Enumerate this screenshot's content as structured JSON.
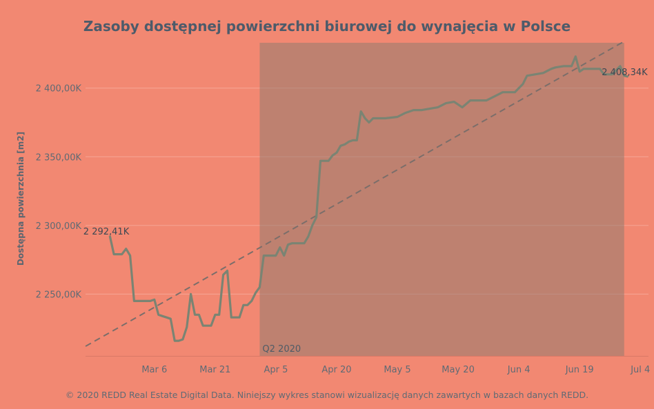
{
  "chart_data": {
    "type": "line",
    "title": "Zasoby dostępnej powierzchni biurowej do wynajęcia w Polsce",
    "ylabel": "Dostępna powierzchnia [m2]",
    "footer": "© 2020 REDD Real Estate Digital Data. Niniejszy wykres stanowi wizualizację danych zawartych w bazach danych REDD.",
    "x_range": [
      "2020-02-18",
      "2020-07-06"
    ],
    "ylim": [
      2205,
      2433
    ],
    "x_ticks": [
      {
        "date": "2020-03-06",
        "label": "Mar 6"
      },
      {
        "date": "2020-03-21",
        "label": "Mar 21"
      },
      {
        "date": "2020-04-05",
        "label": "Apr 5"
      },
      {
        "date": "2020-04-20",
        "label": "Apr 20"
      },
      {
        "date": "2020-05-05",
        "label": "May 5"
      },
      {
        "date": "2020-05-20",
        "label": "May 20"
      },
      {
        "date": "2020-06-04",
        "label": "Jun 4"
      },
      {
        "date": "2020-06-19",
        "label": "Jun 19"
      },
      {
        "date": "2020-07-04",
        "label": "Jul 4"
      }
    ],
    "y_ticks": [
      {
        "value": 2250,
        "label": "2 250,00K"
      },
      {
        "value": 2300,
        "label": "2 300,00K"
      },
      {
        "value": 2350,
        "label": "2 350,00K"
      },
      {
        "value": 2400,
        "label": "2 400,00K"
      }
    ],
    "band": {
      "start": "2020-04-01",
      "end": "2020-06-30",
      "label": "Q2 2020"
    },
    "trend": {
      "x": [
        "2020-02-18",
        "2020-06-30"
      ],
      "y": [
        2212,
        2434
      ]
    },
    "series": [
      {
        "color": "#7a8473",
        "x": [
          "2020-02-24",
          "2020-02-25",
          "2020-02-26",
          "2020-02-27",
          "2020-02-28",
          "2020-02-29",
          "2020-03-01",
          "2020-03-02",
          "2020-03-03",
          "2020-03-04",
          "2020-03-05",
          "2020-03-06",
          "2020-03-07",
          "2020-03-08",
          "2020-03-09",
          "2020-03-10",
          "2020-03-11",
          "2020-03-12",
          "2020-03-13",
          "2020-03-14",
          "2020-03-15",
          "2020-03-16",
          "2020-03-17",
          "2020-03-18",
          "2020-03-19",
          "2020-03-20",
          "2020-03-21",
          "2020-03-22",
          "2020-03-23",
          "2020-03-24",
          "2020-03-25",
          "2020-03-26",
          "2020-03-27",
          "2020-03-28",
          "2020-03-29",
          "2020-03-30",
          "2020-03-31",
          "2020-04-01",
          "2020-04-02",
          "2020-04-03",
          "2020-04-04",
          "2020-04-05",
          "2020-04-06",
          "2020-04-07",
          "2020-04-08",
          "2020-04-09",
          "2020-04-10",
          "2020-04-11",
          "2020-04-12",
          "2020-04-13",
          "2020-04-14",
          "2020-04-15",
          "2020-04-16",
          "2020-04-17",
          "2020-04-18",
          "2020-04-19",
          "2020-04-20",
          "2020-04-21",
          "2020-04-22",
          "2020-04-23",
          "2020-04-24",
          "2020-04-25",
          "2020-04-26",
          "2020-04-27",
          "2020-04-28",
          "2020-04-29",
          "2020-04-30",
          "2020-05-01",
          "2020-05-02",
          "2020-05-05",
          "2020-05-07",
          "2020-05-09",
          "2020-05-11",
          "2020-05-13",
          "2020-05-15",
          "2020-05-17",
          "2020-05-19",
          "2020-05-21",
          "2020-05-23",
          "2020-05-25",
          "2020-05-27",
          "2020-05-29",
          "2020-05-31",
          "2020-06-01",
          "2020-06-03",
          "2020-06-05",
          "2020-06-06",
          "2020-06-08",
          "2020-06-10",
          "2020-06-12",
          "2020-06-13",
          "2020-06-15",
          "2020-06-17",
          "2020-06-18",
          "2020-06-19",
          "2020-06-20",
          "2020-06-22",
          "2020-06-24",
          "2020-06-25",
          "2020-06-27",
          "2020-06-29",
          "2020-06-30",
          "2020-07-01"
        ],
        "y": [
          2292.4,
          2279,
          2279,
          2279,
          2283,
          2278,
          2245,
          2245,
          2245,
          2245,
          2245,
          2246,
          2235,
          2234,
          2233,
          2232,
          2216,
          2216,
          2217,
          2226,
          2250,
          2235,
          2235,
          2227,
          2227,
          2227,
          2235,
          2235,
          2264,
          2267,
          2233,
          2233,
          2233,
          2242,
          2242,
          2245,
          2251,
          2255,
          2278,
          2278,
          2278,
          2278,
          2284,
          2278,
          2286,
          2287,
          2287,
          2287,
          2287,
          2292,
          2300,
          2306,
          2347,
          2347,
          2347,
          2351,
          2353,
          2358,
          2359,
          2361,
          2362,
          2362,
          2383,
          2378,
          2375,
          2378,
          2378,
          2378,
          2378,
          2379,
          2382,
          2384,
          2384,
          2385,
          2386,
          2389,
          2390,
          2386,
          2391,
          2391,
          2391,
          2394,
          2397,
          2397,
          2397,
          2403,
          2409,
          2410,
          2411,
          2414,
          2415,
          2416,
          2416,
          2423,
          2412,
          2414,
          2414,
          2414,
          2410,
          2410,
          2416,
          2409,
          2408.3
        ]
      }
    ],
    "annotations": [
      {
        "x": "2020-02-24",
        "y": 2292.4,
        "text": "2 292,41K",
        "anchor": "end"
      },
      {
        "x": "2020-07-01",
        "y": 2408.3,
        "text": "2 408,34K",
        "anchor": "end"
      }
    ]
  }
}
